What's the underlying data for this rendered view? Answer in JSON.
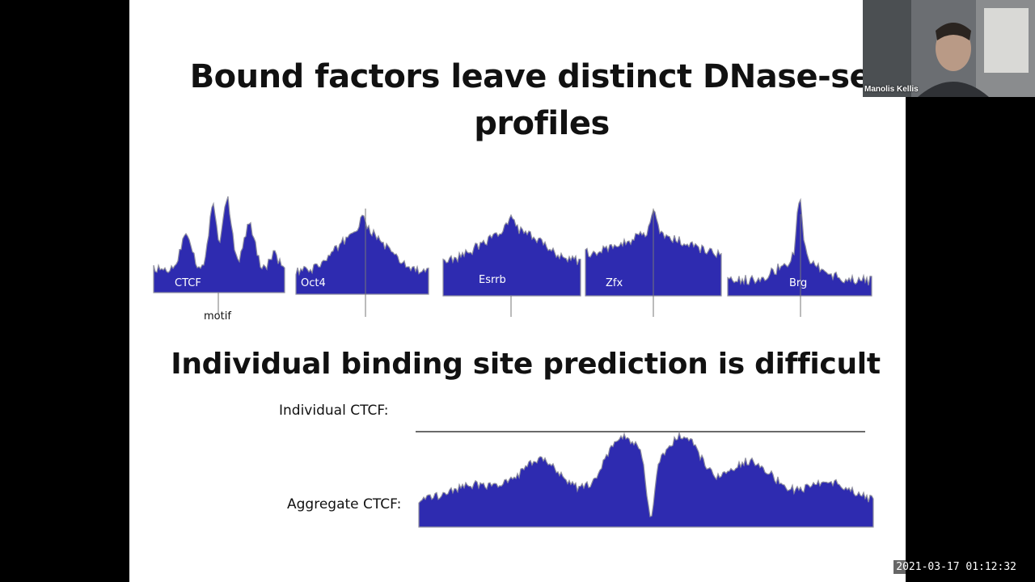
{
  "slide": {
    "title_line1": "Bound factors leave distinct DNase-seq",
    "title_line2": "profiles",
    "profiles": [
      {
        "label": "CTCF"
      },
      {
        "label": "Oct4"
      },
      {
        "label": "Esrrb"
      },
      {
        "label": "Zfx"
      },
      {
        "label": "Brg"
      }
    ],
    "motif_label": "motif",
    "subtitle": "Individual binding site prediction is difficult",
    "individual_label": "Individual CTCF:",
    "aggregate_label": "Aggregate CTCF:",
    "colors": {
      "profile_fill": "#2e2bb0",
      "profile_edge": "#8f8fa0"
    }
  },
  "video": {
    "participant_name": "Manolis Kellis"
  },
  "timestamp": "2021-03-17 01:12:32"
}
